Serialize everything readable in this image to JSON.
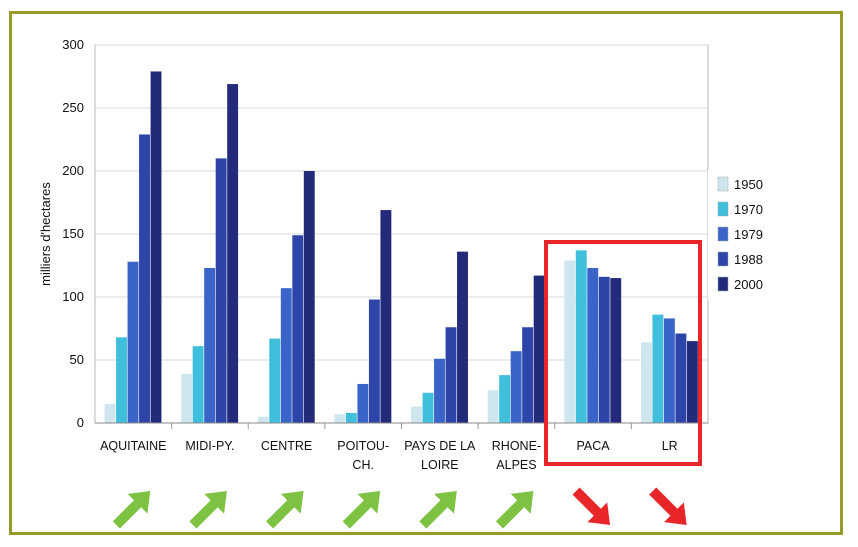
{
  "chart_data": {
    "type": "bar",
    "ylabel": "milliers d'hectares",
    "ylim": [
      0,
      300
    ],
    "yticks": [
      0,
      50,
      100,
      150,
      200,
      250,
      300
    ],
    "grid": true,
    "legend_position": "right",
    "categories": [
      [
        "AQUITAINE"
      ],
      [
        "MIDI-PY."
      ],
      [
        "CENTRE"
      ],
      [
        "POITOU-",
        "CH."
      ],
      [
        "PAYS DE LA",
        "LOIRE"
      ],
      [
        "RHONE-",
        "ALPES"
      ],
      [
        "PACA"
      ],
      [
        "LR"
      ]
    ],
    "series": [
      {
        "name": "1950",
        "color": "#cfe6ef",
        "values": [
          15,
          39,
          5,
          7,
          13,
          26,
          129,
          64
        ]
      },
      {
        "name": "1970",
        "color": "#3fbfdc",
        "values": [
          68,
          61,
          67,
          8,
          24,
          38,
          137,
          86
        ]
      },
      {
        "name": "1979",
        "color": "#3a64c8",
        "values": [
          128,
          123,
          107,
          31,
          51,
          57,
          123,
          83
        ]
      },
      {
        "name": "1988",
        "color": "#2d45a8",
        "values": [
          229,
          210,
          149,
          98,
          76,
          76,
          116,
          71
        ]
      },
      {
        "name": "2000",
        "color": "#232a7a",
        "values": [
          279,
          269,
          200,
          169,
          136,
          117,
          115,
          65
        ]
      }
    ],
    "trend_arrows": [
      "up",
      "up",
      "up",
      "up",
      "up",
      "up",
      "down",
      "down"
    ],
    "trend_colors": {
      "up": "#7dc242",
      "down": "#e8262a"
    },
    "highlight": {
      "categories": [
        "PACA",
        "LR"
      ],
      "color": "#e8262a"
    }
  }
}
